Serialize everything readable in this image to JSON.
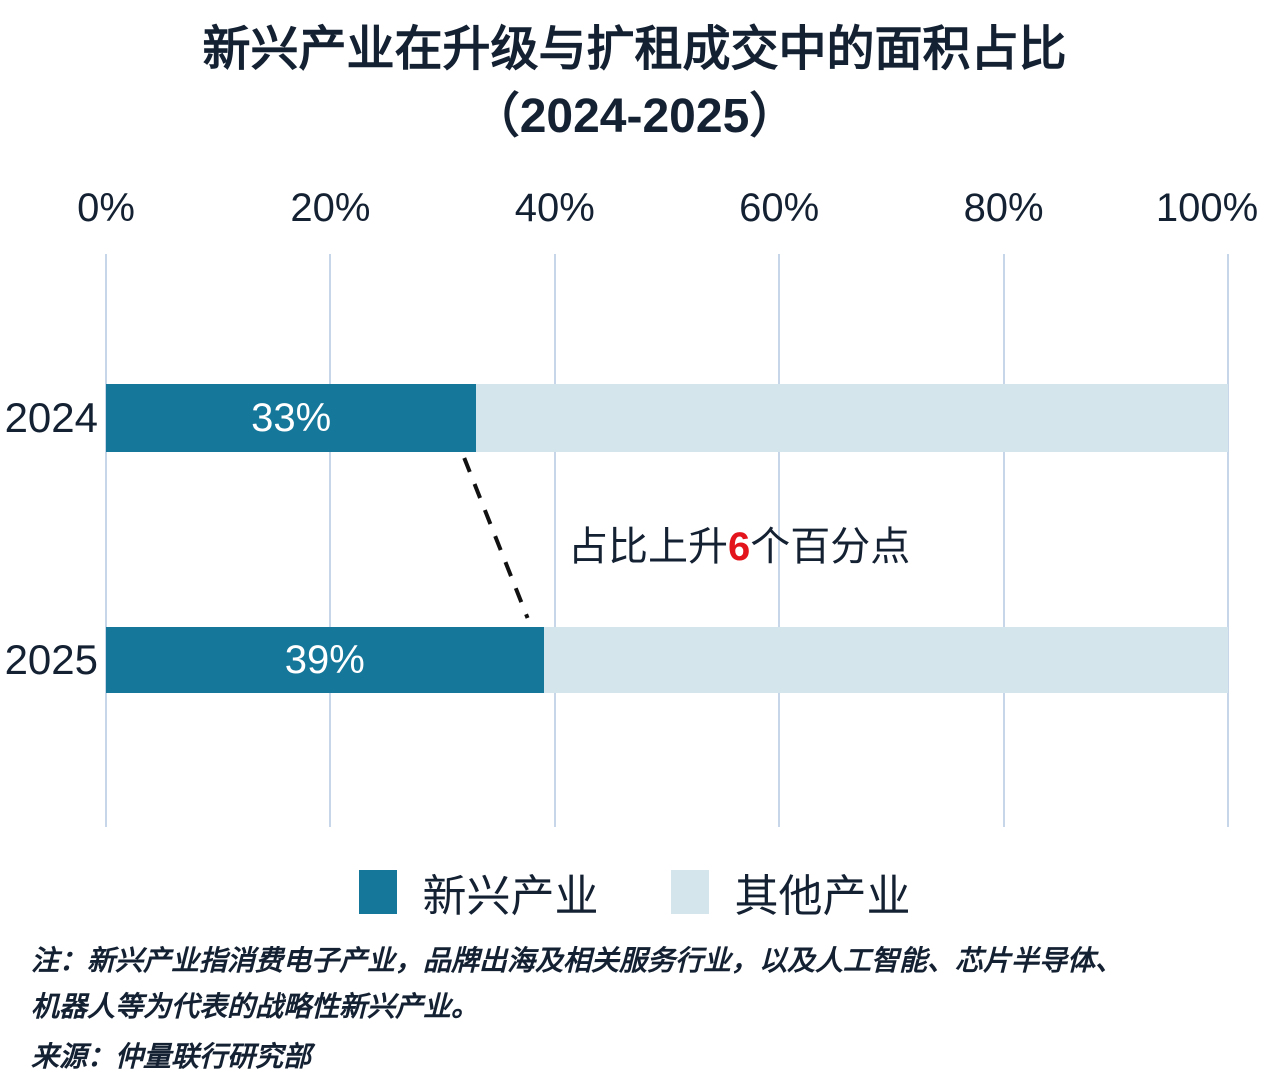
{
  "title": {
    "line1": "新兴产业在升级与扩租成交中的面积占比",
    "line2": "（2024-2025）"
  },
  "chart_data": {
    "type": "bar",
    "orientation": "horizontal",
    "stacked": true,
    "categories": [
      "2024",
      "2025"
    ],
    "series": [
      {
        "name": "新兴产业",
        "values": [
          33,
          39
        ],
        "color": "#15779A"
      },
      {
        "name": "其他产业",
        "values": [
          67,
          61
        ],
        "color": "#D5E5EC"
      }
    ],
    "bar_labels": [
      "33%",
      "39%"
    ],
    "x_axis": {
      "ticks": [
        "0%",
        "20%",
        "40%",
        "60%",
        "80%",
        "100%"
      ],
      "min": 0,
      "max": 100,
      "position": "top",
      "grid": true
    },
    "annotation": {
      "prefix": "占比上升",
      "highlight": "6",
      "suffix": "个百分点",
      "highlight_color": "#E3141C"
    },
    "legend_position": "bottom"
  },
  "legend": [
    {
      "label": "新兴产业",
      "color": "#15779A"
    },
    {
      "label": "其他产业",
      "color": "#D5E5EC"
    }
  ],
  "footnotes": {
    "note_line1": "注：新兴产业指消费电子产业，品牌出海及相关服务行业，以及人工智能、芯片半导体、",
    "note_line2": "机器人等为代表的战略性新兴产业。",
    "source": "来源：仲量联行研究部"
  },
  "colors": {
    "emerging": "#15779A",
    "other": "#D5E5EC",
    "text": "#142133",
    "highlight_red": "#E3141C",
    "gridline": "#C7D7E9",
    "connector": "#111111",
    "bar_label": "#FFFFFF"
  }
}
